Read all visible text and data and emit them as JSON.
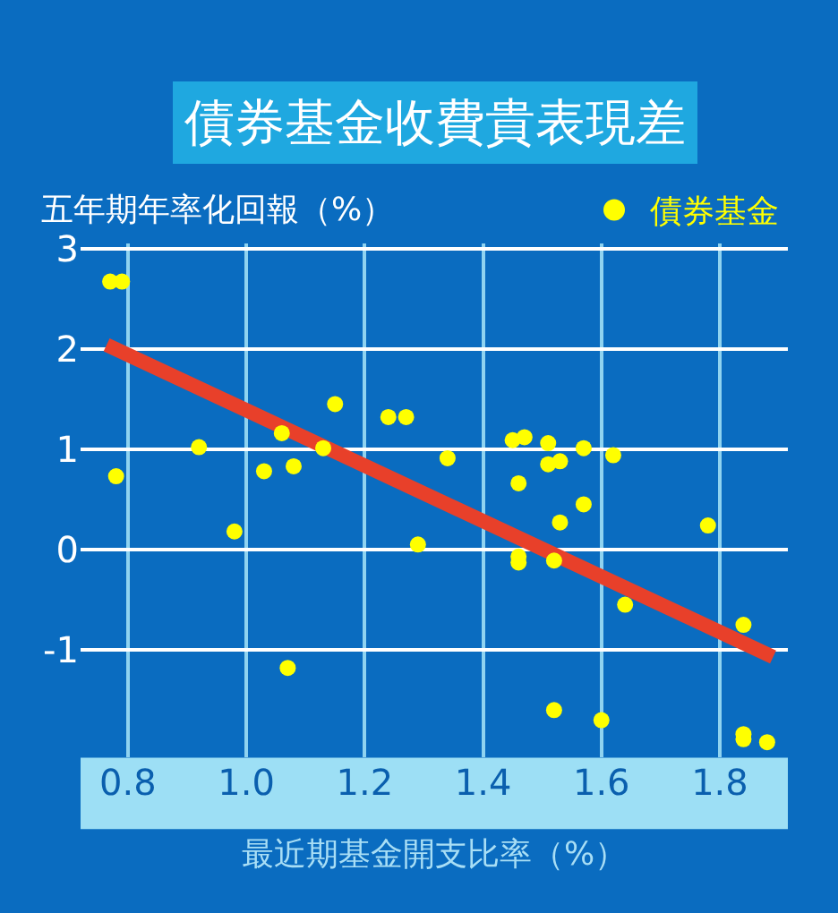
{
  "chart_data": {
    "type": "scatter",
    "title": "債券基金收費貴表現差",
    "xlabel": "最近期基金開支比率（%）",
    "ylabel": "五年期年率化回報（%）",
    "xlim": [
      0.72,
      1.915
    ],
    "xticks": [
      {
        "value": 0.8,
        "label": "0.8"
      },
      {
        "value": 1.0,
        "label": "1.0"
      },
      {
        "value": 1.2,
        "label": "1.2"
      },
      {
        "value": 1.4,
        "label": "1.4"
      },
      {
        "value": 1.6,
        "label": "1.6"
      },
      {
        "value": 1.8,
        "label": "1.8"
      }
    ],
    "ylim": [
      -2.07,
      3.05
    ],
    "yticks": [
      -1,
      0,
      1,
      2,
      3
    ],
    "grid": true,
    "legend": "top right",
    "marker": "circle",
    "series": [
      {
        "name": "債券基金",
        "color": "#ffff00",
        "x": [
          0.77,
          0.79,
          0.78,
          0.92,
          0.98,
          1.03,
          1.06,
          1.08,
          1.13,
          1.15,
          1.24,
          1.27,
          1.29,
          1.34,
          1.45,
          1.47,
          1.51,
          1.57,
          1.62,
          1.46,
          1.51,
          1.53,
          1.57,
          1.53,
          1.78,
          1.46,
          1.46,
          1.52,
          1.64,
          1.84,
          1.07,
          1.52,
          1.6,
          1.84,
          1.84,
          1.88
        ],
        "values": [
          2.67,
          2.67,
          0.73,
          1.02,
          0.18,
          0.78,
          1.16,
          0.83,
          1.01,
          1.45,
          1.32,
          1.32,
          0.05,
          0.91,
          1.09,
          1.12,
          1.06,
          1.01,
          0.94,
          0.66,
          0.85,
          0.88,
          0.45,
          0.27,
          0.24,
          -0.07,
          -0.13,
          -0.11,
          -0.55,
          -0.75,
          -1.18,
          -1.6,
          -1.7,
          -1.84,
          -1.89,
          -1.92
        ]
      },
      {
        "type": "line",
        "color": "#e8402a",
        "x": [
          0.764,
          1.89
        ],
        "values": [
          2.04,
          -1.07
        ],
        "marker": "none"
      }
    ]
  }
}
